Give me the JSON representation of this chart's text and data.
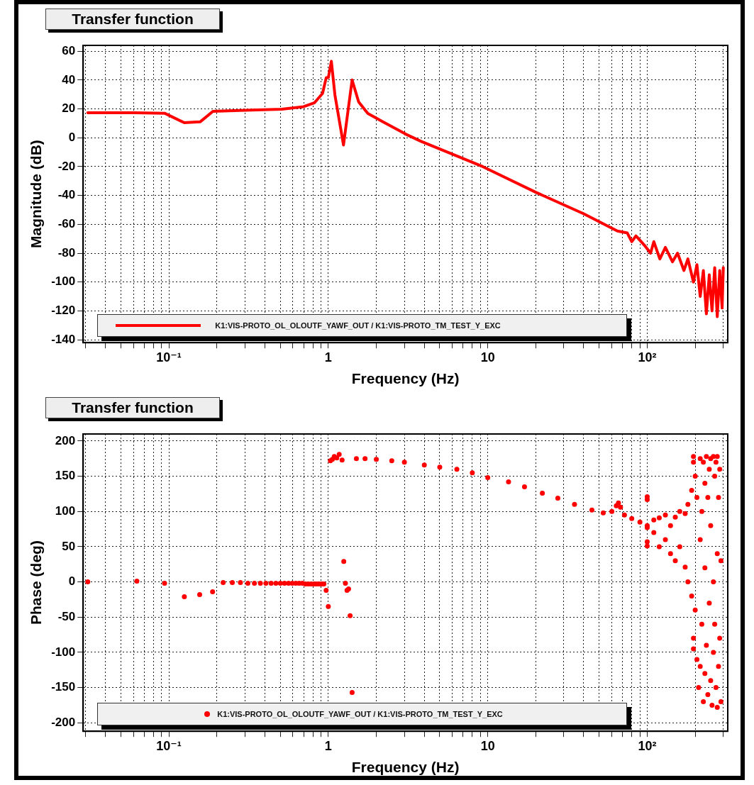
{
  "chart_data": [
    {
      "type": "line",
      "title": "Transfer function",
      "xlabel": "Frequency (Hz)",
      "ylabel": "Magnitude (dB)",
      "log": "x",
      "grid": true,
      "legend": "bottom left",
      "series": [
        {
          "name": "K1:VIS-PROTO_OL_OLOUTF_YAWF_OUT / K1:VIS-PROTO_TM_TEST_Y_EXC",
          "color": "#ff0000",
          "x": [
            0.031,
            0.06,
            0.094,
            0.125,
            0.157,
            0.189,
            0.3,
            0.51,
            0.7,
            0.82,
            0.92,
            0.97,
            1.0,
            1.045,
            1.1,
            1.245,
            1.41,
            1.55,
            1.77,
            2.21,
            3.07,
            3.82,
            9.3,
            20,
            40,
            65,
            75,
            80,
            85,
            96,
            105,
            110,
            120,
            130,
            144,
            155,
            170,
            180,
            195,
            205,
            215,
            225,
            235,
            245,
            255,
            265,
            275,
            285,
            295,
            300
          ],
          "values": [
            17.3,
            17.3,
            17,
            10.4,
            11,
            18.3,
            19,
            19.8,
            21.5,
            24.3,
            30.7,
            41.6,
            41.6,
            53,
            29.7,
            -5,
            40,
            24.8,
            16.8,
            10.9,
            2.4,
            -2.5,
            -20,
            -37.8,
            -52.7,
            -64.6,
            -66,
            -72,
            -68,
            -74.5,
            -80,
            -72,
            -84,
            -76,
            -86,
            -80,
            -92,
            -84,
            -100,
            -88,
            -110,
            -92,
            -122,
            -95,
            -120,
            -90,
            -124,
            -92,
            -118,
            -90
          ]
        }
      ],
      "xlim": [
        0.029,
        320
      ],
      "xticks": [
        {
          "value": 0.03,
          "label": null
        },
        {
          "value": 0.04,
          "label": null
        },
        {
          "value": 0.05,
          "label": null
        },
        {
          "value": 0.06,
          "label": null
        },
        {
          "value": 0.07,
          "label": null
        },
        {
          "value": 0.08,
          "label": null
        },
        {
          "value": 0.09,
          "label": null
        },
        {
          "value": 0.1,
          "label": "10⁻¹"
        },
        {
          "value": 0.2,
          "label": null
        },
        {
          "value": 0.3,
          "label": null
        },
        {
          "value": 0.4,
          "label": null
        },
        {
          "value": 0.5,
          "label": null
        },
        {
          "value": 0.6,
          "label": null
        },
        {
          "value": 0.7,
          "label": null
        },
        {
          "value": 0.8,
          "label": null
        },
        {
          "value": 0.9,
          "label": null
        },
        {
          "value": 1,
          "label": "1"
        },
        {
          "value": 2,
          "label": null
        },
        {
          "value": 3,
          "label": null
        },
        {
          "value": 4,
          "label": null
        },
        {
          "value": 5,
          "label": null
        },
        {
          "value": 6,
          "label": null
        },
        {
          "value": 7,
          "label": null
        },
        {
          "value": 8,
          "label": null
        },
        {
          "value": 9,
          "label": null
        },
        {
          "value": 10,
          "label": "10"
        },
        {
          "value": 20,
          "label": null
        },
        {
          "value": 30,
          "label": null
        },
        {
          "value": 40,
          "label": null
        },
        {
          "value": 50,
          "label": null
        },
        {
          "value": 60,
          "label": null
        },
        {
          "value": 70,
          "label": null
        },
        {
          "value": 80,
          "label": null
        },
        {
          "value": 90,
          "label": null
        },
        {
          "value": 100,
          "label": "10²"
        },
        {
          "value": 200,
          "label": null
        },
        {
          "value": 300,
          "label": null
        }
      ],
      "ylim": [
        -142,
        64
      ],
      "yticks": [
        -140,
        -120,
        -100,
        -80,
        -60,
        -40,
        -20,
        0,
        20,
        40,
        60
      ]
    },
    {
      "type": "scatter",
      "title": "Transfer function",
      "xlabel": "Frequency (Hz)",
      "ylabel": "Phase (deg)",
      "log": "x",
      "grid": true,
      "legend": "bottom left",
      "marker": "circle",
      "series": [
        {
          "name": "K1:VIS-PROTO_OL_OLOUTF_YAWF_OUT / K1:VIS-PROTO_TM_TEST_Y_EXC",
          "color": "#ff0000",
          "x": [
            0.031,
            0.063,
            0.094,
            0.125,
            0.156,
            0.188,
            0.219,
            0.25,
            0.281,
            0.313,
            0.344,
            0.375,
            0.406,
            0.438,
            0.469,
            0.5,
            0.531,
            0.563,
            0.594,
            0.625,
            0.656,
            0.688,
            0.719,
            0.75,
            0.781,
            0.813,
            0.844,
            0.875,
            0.906,
            0.938,
            0.969,
            1.0,
            1.03,
            1.06,
            1.09,
            1.13,
            1.17,
            1.22,
            1.25,
            1.28,
            1.31,
            1.34,
            1.37,
            1.41,
            1.5,
            1.7,
            2,
            2.5,
            3,
            4,
            5,
            6.4,
            8,
            10,
            13.5,
            17,
            22,
            27.5,
            35,
            45,
            53,
            60,
            64,
            66,
            68,
            72,
            80,
            90,
            100,
            100,
            100,
            100,
            100,
            100,
            110,
            110,
            119,
            119,
            130,
            130,
            140,
            140,
            150,
            150,
            160,
            160,
            173,
            173,
            180,
            180,
            190,
            190,
            195,
            195,
            195,
            195,
            200,
            200,
            205,
            205,
            210,
            215,
            215,
            215,
            220,
            220,
            225,
            225,
            230,
            230,
            230,
            235,
            235,
            240,
            240,
            245,
            245,
            250,
            250,
            250,
            255,
            260,
            260,
            260,
            265,
            265,
            270,
            270,
            275,
            275,
            275,
            280,
            280,
            285,
            285,
            290,
            290
          ],
          "values": [
            0,
            1,
            -2,
            -21,
            -18,
            -14,
            -1,
            -1,
            -1,
            -2,
            -2,
            -2,
            -2,
            -2,
            -2,
            -2,
            -2,
            -2,
            -2,
            -2,
            -2,
            -2,
            -3,
            -3,
            -3,
            -3,
            -3,
            -3,
            -3,
            -3,
            -12,
            -35,
            172,
            174,
            178,
            176,
            181,
            173,
            29,
            -2,
            -12,
            -10,
            -48,
            -157,
            175,
            175,
            174,
            172,
            170,
            166,
            163,
            160,
            155,
            148,
            142,
            135,
            126,
            119,
            110,
            102,
            98,
            100,
            108,
            112,
            106,
            95,
            90,
            85,
            121,
            117,
            80,
            77,
            57,
            51,
            88,
            70,
            91,
            50,
            95,
            60,
            80,
            40,
            92,
            30,
            100,
            50,
            97,
            21,
            110,
            0,
            130,
            -20,
            178,
            170,
            -80,
            -95,
            150,
            -40,
            120,
            -110,
            -150,
            175,
            60,
            -120,
            100,
            -60,
            170,
            -170,
            140,
            20,
            -130,
            178,
            -90,
            120,
            -160,
            160,
            -30,
            175,
            80,
            -140,
            -175,
            178,
            0,
            -100,
            150,
            -60,
            170,
            -150,
            178,
            40,
            -178,
            120,
            -120,
            160,
            -80,
            -170,
            30
          ]
        }
      ],
      "xlim": [
        0.029,
        320
      ],
      "xticks": [
        {
          "value": 0.03,
          "label": null
        },
        {
          "value": 0.04,
          "label": null
        },
        {
          "value": 0.05,
          "label": null
        },
        {
          "value": 0.06,
          "label": null
        },
        {
          "value": 0.07,
          "label": null
        },
        {
          "value": 0.08,
          "label": null
        },
        {
          "value": 0.09,
          "label": null
        },
        {
          "value": 0.1,
          "label": "10⁻¹"
        },
        {
          "value": 0.2,
          "label": null
        },
        {
          "value": 0.3,
          "label": null
        },
        {
          "value": 0.4,
          "label": null
        },
        {
          "value": 0.5,
          "label": null
        },
        {
          "value": 0.6,
          "label": null
        },
        {
          "value": 0.7,
          "label": null
        },
        {
          "value": 0.8,
          "label": null
        },
        {
          "value": 0.9,
          "label": null
        },
        {
          "value": 1,
          "label": "1"
        },
        {
          "value": 2,
          "label": null
        },
        {
          "value": 3,
          "label": null
        },
        {
          "value": 4,
          "label": null
        },
        {
          "value": 5,
          "label": null
        },
        {
          "value": 6,
          "label": null
        },
        {
          "value": 7,
          "label": null
        },
        {
          "value": 8,
          "label": null
        },
        {
          "value": 9,
          "label": null
        },
        {
          "value": 10,
          "label": "10"
        },
        {
          "value": 20,
          "label": null
        },
        {
          "value": 30,
          "label": null
        },
        {
          "value": 40,
          "label": null
        },
        {
          "value": 50,
          "label": null
        },
        {
          "value": 60,
          "label": null
        },
        {
          "value": 70,
          "label": null
        },
        {
          "value": 80,
          "label": null
        },
        {
          "value": 90,
          "label": null
        },
        {
          "value": 100,
          "label": "10²"
        },
        {
          "value": 200,
          "label": null
        },
        {
          "value": 300,
          "label": null
        }
      ],
      "ylim": [
        -212,
        210
      ],
      "yticks": [
        -200,
        -150,
        -100,
        -50,
        0,
        50,
        100,
        150,
        200
      ]
    }
  ]
}
